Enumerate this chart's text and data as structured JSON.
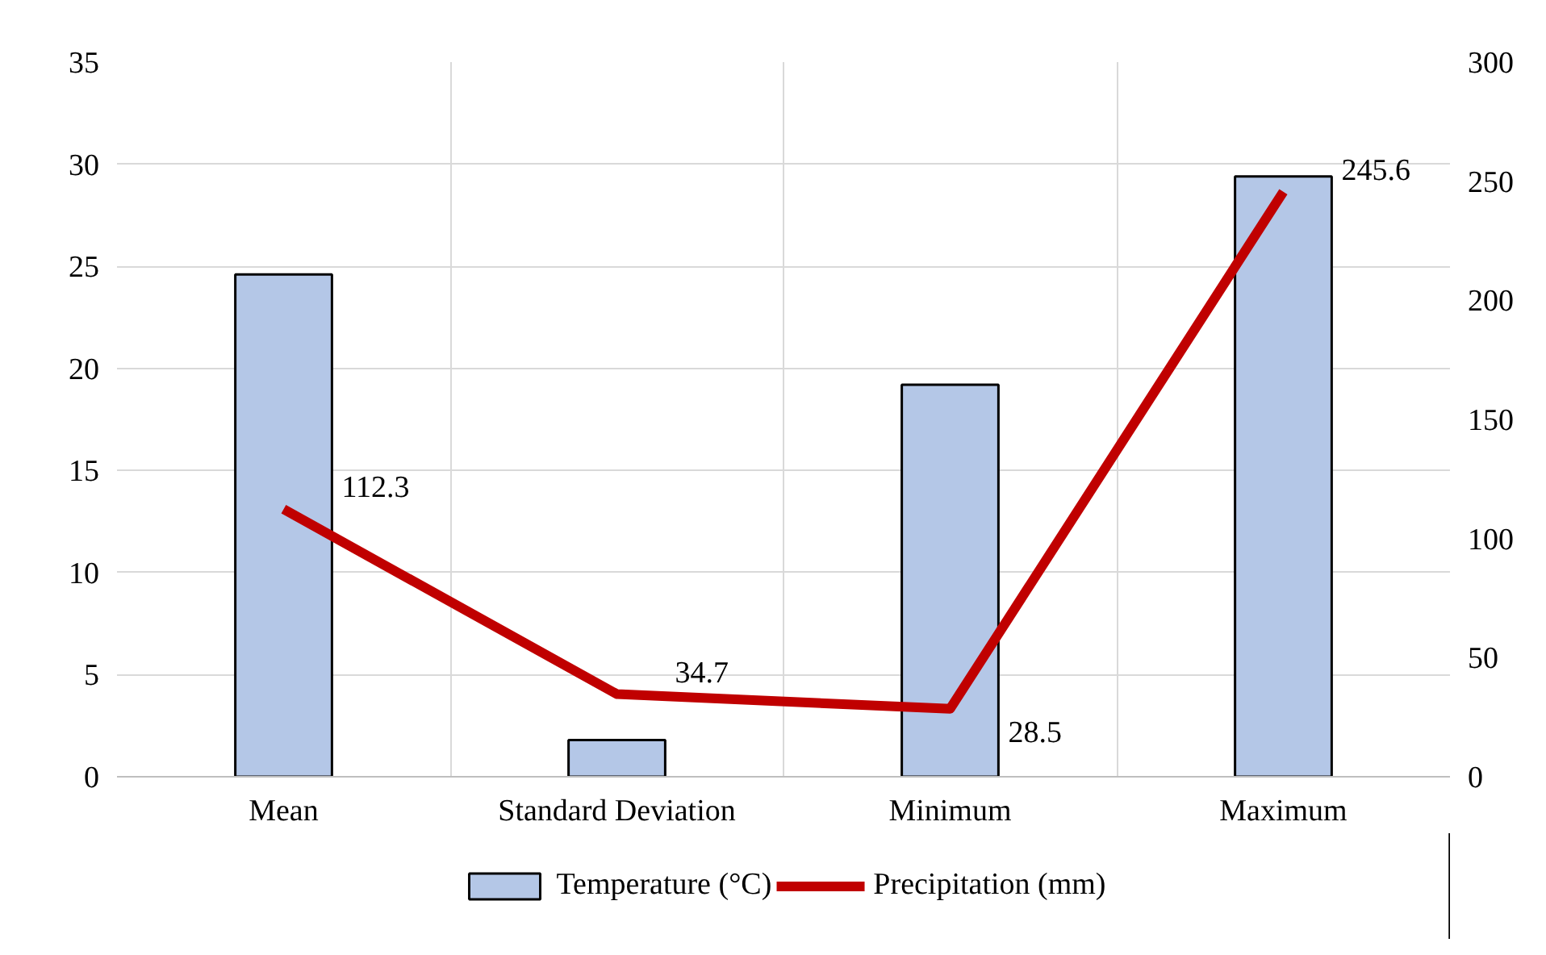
{
  "chart_data": {
    "type": "bar",
    "categories": [
      "Mean",
      "Standard Deviation",
      "Minimum",
      "Maximum"
    ],
    "series": [
      {
        "name": "Temperature (°C)",
        "color": "#b4c7e7",
        "values": [
          24.6,
          1.8,
          19.2,
          29.4
        ]
      },
      {
        "name": "Precipitation (mm)",
        "type": "line",
        "axis": "y2",
        "color": "#c00000",
        "values": [
          112.3,
          34.7,
          28.5,
          245.6
        ],
        "value_labels": [
          "112.3",
          "34.7",
          "28.5",
          "245.6"
        ]
      }
    ],
    "ylim": [
      0,
      35
    ],
    "yticks": [
      0,
      5,
      10,
      15,
      20,
      25,
      30,
      35
    ],
    "y2lim": [
      0,
      300
    ],
    "y2ticks": [
      0,
      50,
      100,
      150,
      200,
      250,
      300
    ],
    "grid": true,
    "legend": "bottom",
    "marker": "none",
    "line_style": "solid"
  }
}
